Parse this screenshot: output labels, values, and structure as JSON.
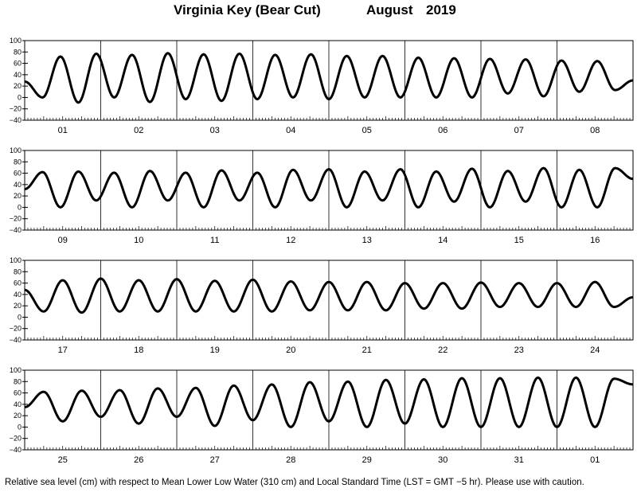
{
  "header": {
    "station": "Virginia Key (Bear Cut)",
    "month": "August",
    "year": "2019"
  },
  "footnote": "Relative sea level (cm) with respect to Mean Lower Low Water (310 cm) and Local Standard Time (LST = GMT −5 hr). Please use with caution.",
  "colors": {
    "line": "#000000",
    "frame": "#000000",
    "background": "#ffffff"
  },
  "chart_data": [
    {
      "type": "line",
      "panel": 1,
      "xlabels": [
        "01",
        "02",
        "03",
        "04",
        "05",
        "06",
        "07",
        "08"
      ],
      "ylim": [
        -40,
        100
      ],
      "yticks": [
        -40,
        -20,
        0,
        20,
        40,
        60,
        80,
        100
      ],
      "ytick_labels": [
        "−40",
        "−20",
        "0",
        "20",
        "40",
        "60",
        "80",
        "100"
      ],
      "grid": "vertical day separators",
      "series": [
        {
          "values": [
            28,
            0,
            72,
            -9,
            77,
            0,
            75,
            -8,
            78,
            -3,
            76,
            -6,
            77,
            -3,
            75,
            0,
            76,
            -3,
            73,
            0,
            73,
            0,
            70,
            0,
            69,
            0,
            68,
            7,
            67,
            2,
            65,
            10,
            64,
            13,
            30
          ]
        }
      ]
    },
    {
      "type": "line",
      "panel": 2,
      "xlabels": [
        "09",
        "10",
        "11",
        "12",
        "13",
        "14",
        "15",
        "16"
      ],
      "ylim": [
        -40,
        100
      ],
      "yticks": [
        -40,
        -20,
        0,
        20,
        40,
        60,
        80,
        100
      ],
      "ytick_labels": [
        "−40",
        "−20",
        "0",
        "20",
        "40",
        "60",
        "80",
        "100"
      ],
      "grid": "vertical day separators",
      "series": [
        {
          "values": [
            32,
            62,
            0,
            63,
            12,
            61,
            0,
            64,
            12,
            61,
            0,
            65,
            12,
            61,
            0,
            66,
            12,
            67,
            0,
            63,
            12,
            67,
            0,
            63,
            10,
            68,
            0,
            64,
            10,
            69,
            0,
            66,
            0,
            69,
            50
          ]
        }
      ]
    },
    {
      "type": "line",
      "panel": 3,
      "xlabels": [
        "17",
        "18",
        "19",
        "20",
        "21",
        "22",
        "23",
        "24"
      ],
      "ylim": [
        -40,
        100
      ],
      "yticks": [
        -40,
        -20,
        0,
        20,
        40,
        60,
        80,
        100
      ],
      "ytick_labels": [
        "−40",
        "−20",
        "0",
        "20",
        "40",
        "60",
        "80",
        "100"
      ],
      "grid": "vertical day separators",
      "series": [
        {
          "values": [
            48,
            10,
            65,
            8,
            68,
            10,
            65,
            10,
            67,
            10,
            64,
            10,
            66,
            10,
            63,
            12,
            62,
            12,
            62,
            12,
            60,
            15,
            60,
            15,
            61,
            18,
            60,
            18,
            60,
            18,
            62,
            18,
            35
          ]
        }
      ]
    },
    {
      "type": "line",
      "panel": 4,
      "xlabels": [
        "25",
        "26",
        "27",
        "28",
        "29",
        "30",
        "31",
        "01"
      ],
      "ylim": [
        -40,
        100
      ],
      "yticks": [
        -40,
        -20,
        0,
        20,
        40,
        60,
        80,
        100
      ],
      "ytick_labels": [
        "−40",
        "−20",
        "0",
        "20",
        "40",
        "60",
        "80",
        "100"
      ],
      "grid": "vertical day separators",
      "series": [
        {
          "values": [
            35,
            62,
            10,
            64,
            18,
            65,
            6,
            68,
            18,
            69,
            2,
            73,
            12,
            75,
            0,
            79,
            10,
            80,
            0,
            83,
            6,
            84,
            0,
            86,
            0,
            86,
            0,
            87,
            0,
            87,
            0,
            85,
            75
          ]
        }
      ]
    }
  ]
}
